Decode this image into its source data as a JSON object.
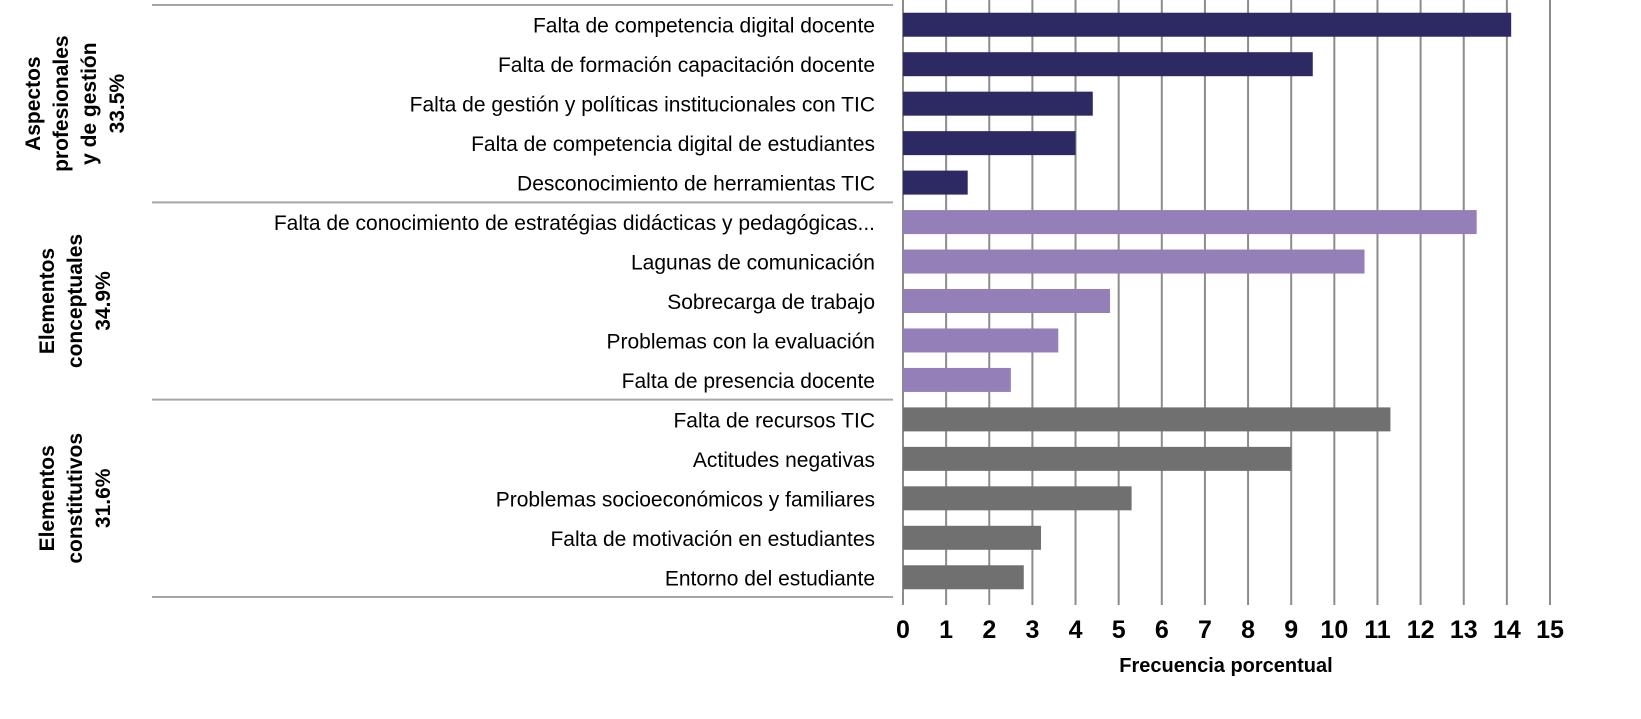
{
  "chart_data": {
    "type": "bar",
    "orientation": "horizontal",
    "title": "",
    "xlabel": "Frecuencia porcentual",
    "ylabel": "",
    "xlim": [
      0,
      15
    ],
    "xticks": [
      "0",
      "1",
      "2",
      "3",
      "4",
      "5",
      "6",
      "7",
      "8",
      "9",
      "10",
      "11",
      "12",
      "13",
      "14",
      "15"
    ],
    "grid": "vertical",
    "legend": "none",
    "groups": [
      {
        "label_lines": [
          "Aspectos",
          "profesionales",
          "y de gestión",
          "33.5%"
        ],
        "color": "#2d2963",
        "categories": [
          "Falta de competencia digital docente",
          "Falta de formación capacitación docente",
          "Falta de gestión y políticas institucionales con TIC",
          "Falta de competencia digital de estudiantes",
          "Desconocimiento de herramientas TIC"
        ],
        "values": [
          14.1,
          9.5,
          4.4,
          4.0,
          1.5
        ]
      },
      {
        "label_lines": [
          "Elementos",
          "conceptuales",
          "34.9%"
        ],
        "color": "#957fb8",
        "categories": [
          "Falta de conocimiento de estratégias didácticas y pedagógicas...",
          "Lagunas de comunicación",
          "Sobrecarga de trabajo",
          "Problemas con la evaluación",
          "Falta de presencia docente"
        ],
        "values": [
          13.3,
          10.7,
          4.8,
          3.6,
          2.5
        ]
      },
      {
        "label_lines": [
          "Elementos",
          "constitutivos",
          "31.6%"
        ],
        "color": "#707070",
        "categories": [
          "Falta de recursos TIC",
          "Actitudes negativas",
          "Problemas socioeconómicos y familiares",
          "Falta de motivación en estudiantes",
          "Entorno del estudiante"
        ],
        "values": [
          11.3,
          9.0,
          5.3,
          3.2,
          2.8
        ]
      }
    ]
  }
}
